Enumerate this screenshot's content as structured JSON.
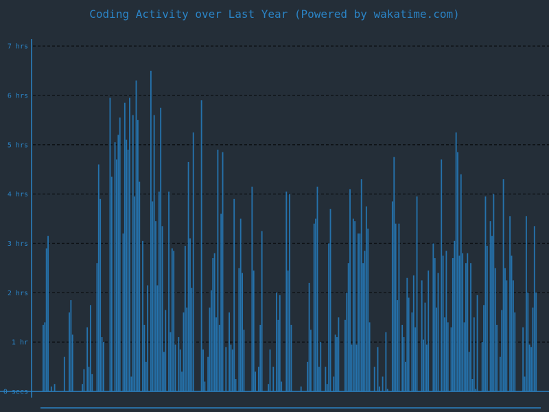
{
  "chart_data": {
    "type": "bar",
    "title": "Coding Activity over Last Year (Powered by wakatime.com)",
    "xlabel": "",
    "ylabel": "",
    "y_unit": "hours",
    "ylim": [
      0,
      7.2
    ],
    "y_ticks": [
      {
        "value": 0,
        "label": "0 secs"
      },
      {
        "value": 1,
        "label": "1 hr"
      },
      {
        "value": 2,
        "label": "2 hrs"
      },
      {
        "value": 3,
        "label": "3 hrs"
      },
      {
        "value": 4,
        "label": "4 hrs"
      },
      {
        "value": 5,
        "label": "5 hrs"
      },
      {
        "value": 6,
        "label": "6 hrs"
      },
      {
        "value": 7,
        "label": "7 hrs"
      }
    ],
    "grid": "horizontal dashed",
    "bar_color": "#2572ac",
    "axis_color": "#2b84c6",
    "grid_color": "#0d1115",
    "background_color": "#242e38",
    "values": [
      1.35,
      1.4,
      2.9,
      3.15,
      0,
      0.1,
      0,
      0.15,
      0,
      0,
      0,
      0,
      0,
      0.7,
      0,
      0,
      1.6,
      1.85,
      1.15,
      0,
      0,
      0,
      0,
      0,
      0.15,
      0.45,
      0,
      1.3,
      0.5,
      1.75,
      0.35,
      0,
      0,
      2.6,
      4.6,
      3.9,
      1.1,
      1.0,
      0,
      0,
      0,
      5.95,
      4.35,
      0,
      5.05,
      4.7,
      5.2,
      5.55,
      0,
      3.2,
      5.85,
      5.1,
      4.9,
      5.95,
      0.3,
      5.6,
      3.95,
      6.3,
      5.5,
      4.25,
      0,
      3.05,
      1.35,
      0.6,
      2.15,
      0,
      6.5,
      3.85,
      5.6,
      3.45,
      2.15,
      4.05,
      5.75,
      3.35,
      0.8,
      1.65,
      0,
      4.05,
      1.2,
      2.9,
      2.85,
      0.95,
      0,
      1.1,
      0.85,
      0.4,
      1.6,
      2.95,
      1.7,
      4.65,
      3.1,
      2.1,
      5.25,
      0,
      0,
      0,
      0,
      5.9,
      0.85,
      0.2,
      0,
      0.7,
      1.7,
      2.05,
      2.7,
      2.8,
      1.5,
      4.9,
      1.35,
      3.6,
      4.85,
      0,
      0.9,
      0,
      1.6,
      0.95,
      0.85,
      3.9,
      0.25,
      0,
      2.5,
      3.5,
      2.4,
      1.25,
      0,
      0,
      0,
      0,
      4.15,
      2.45,
      0.4,
      0,
      0.5,
      1.35,
      3.25,
      0,
      0,
      0,
      0.15,
      0.85,
      0,
      0.5,
      0,
      2.0,
      1.45,
      1.95,
      0.2,
      0,
      0,
      4.05,
      2.45,
      4.0,
      1.35,
      0,
      0,
      0,
      0,
      0,
      0.1,
      0,
      0,
      0,
      0.6,
      2.2,
      1.25,
      0,
      3.4,
      3.5,
      4.15,
      0.5,
      1.0,
      0,
      0,
      0.5,
      0.15,
      3.0,
      3.7,
      0,
      0.3,
      1.15,
      1.1,
      1.5,
      0,
      0,
      0,
      1.45,
      2.0,
      2.6,
      4.1,
      0.95,
      3.5,
      3.45,
      0.95,
      3.2,
      3.2,
      4.3,
      2.6,
      2.85,
      3.75,
      3.3,
      1.4,
      0,
      0,
      0.5,
      0,
      0.9,
      0.1,
      0,
      0.3,
      0,
      1.2,
      0.05,
      0,
      0,
      3.85,
      4.75,
      3.4,
      1.85,
      3.4,
      0,
      1.35,
      1.1,
      0.6,
      2.3,
      1.9,
      0,
      1.6,
      2.35,
      1.3,
      3.95,
      0,
      0,
      2.25,
      1.05,
      1.8,
      0.95,
      2.45,
      0,
      0,
      3.0,
      2.7,
      1.7,
      2.4,
      0,
      4.7,
      2.75,
      1.5,
      2.85,
      1.4,
      0,
      1.3,
      2.7,
      3.05,
      5.25,
      4.85,
      2.75,
      4.4,
      2.8,
      1.4,
      2.6,
      2.8,
      0.8,
      2.6,
      0.25,
      1.5,
      0.05,
      1.95,
      0,
      0,
      1.0,
      1.75,
      3.95,
      2.95,
      0,
      3.45,
      3.15,
      4.0,
      2.5,
      1.35,
      0,
      0.7,
      1.65,
      4.3,
      2.5,
      2.25,
      0,
      3.55,
      2.75,
      2.25,
      1.6,
      0,
      0,
      0,
      0,
      1.3,
      0.3,
      3.55,
      2.0,
      0.95,
      0.9,
      1.7,
      3.35,
      2.0,
      0
    ]
  }
}
